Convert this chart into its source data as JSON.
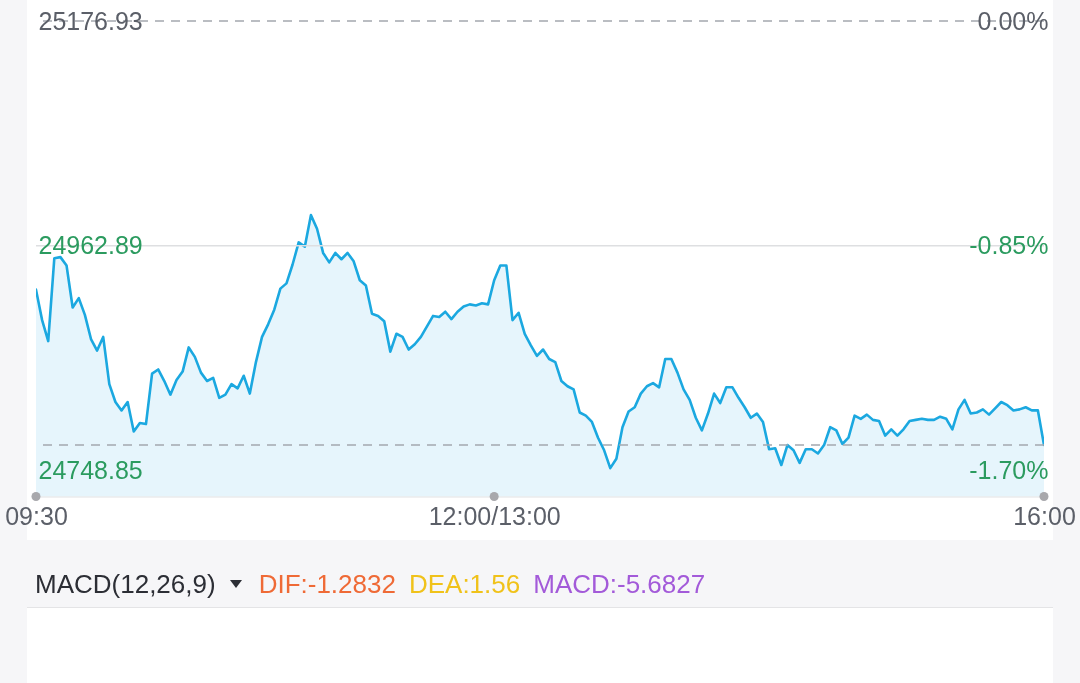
{
  "chart_data": [
    {
      "type": "area",
      "categories": [
        "09:30",
        null,
        null,
        null,
        null,
        null,
        null,
        null,
        null,
        null,
        null,
        null,
        null,
        null,
        null,
        null,
        null,
        null,
        null,
        null,
        null,
        null,
        null,
        null,
        null,
        null,
        null,
        null,
        null,
        null,
        null,
        null,
        null,
        null,
        null,
        null,
        null,
        null,
        null,
        null,
        null,
        null,
        null,
        null,
        null,
        null,
        null,
        null,
        null,
        null,
        null,
        null,
        null,
        null,
        null,
        null,
        null,
        null,
        null,
        null,
        null,
        null,
        null,
        null,
        null,
        null,
        null,
        null,
        null,
        null,
        null,
        null,
        null,
        null,
        null,
        "12:00/13:00",
        null,
        null,
        null,
        null,
        null,
        null,
        null,
        null,
        null,
        null,
        null,
        null,
        null,
        null,
        null,
        null,
        null,
        null,
        null,
        null,
        null,
        null,
        null,
        null,
        null,
        null,
        null,
        null,
        null,
        null,
        null,
        null,
        null,
        null,
        null,
        null,
        null,
        null,
        null,
        null,
        null,
        null,
        null,
        null,
        null,
        null,
        null,
        null,
        null,
        null,
        null,
        null,
        null,
        null,
        null,
        null,
        null,
        null,
        null,
        null,
        null,
        null,
        null,
        null,
        null,
        null,
        null,
        null,
        null,
        null,
        null,
        null,
        null,
        null,
        null,
        null,
        null,
        null,
        null,
        null,
        null,
        null,
        null,
        null,
        null,
        null,
        null,
        null,
        null,
        "16:00"
      ],
      "series": [
        {
          "color": "#1ba8e0",
          "values": [
            24921,
            24892,
            24872,
            24951,
            24952,
            24944,
            24904,
            24913,
            24897,
            24874,
            24863,
            24876,
            24831,
            24814,
            24806,
            24814,
            24786,
            24794,
            24793,
            24841,
            24845,
            24834,
            24821,
            24835,
            24843,
            24866,
            24857,
            24842,
            24834,
            24837,
            24818,
            24821,
            24831,
            24827,
            24839,
            24822,
            24852,
            24876,
            24888,
            24902,
            24922,
            24927,
            24945,
            24966,
            24962,
            24992,
            24979,
            24956,
            24947,
            24956,
            24950,
            24956,
            24948,
            24930,
            24925,
            24898,
            24896,
            24891,
            24862,
            24879,
            24876,
            24864,
            24869,
            24876,
            24886,
            24896,
            24895,
            24900,
            24893,
            24900,
            24905,
            24907,
            24906,
            24908,
            24907,
            24930,
            24944,
            24944,
            24892,
            24899,
            24879,
            24868,
            24858,
            24864,
            24855,
            24852,
            24834,
            24829,
            24826,
            24804,
            24801,
            24795,
            24780,
            24768,
            24751,
            24760,
            24790,
            24805,
            24809,
            24822,
            24829,
            24832,
            24828,
            24855,
            24855,
            24842,
            24826,
            24816,
            24799,
            24787,
            24803,
            24822,
            24813,
            24828,
            24828,
            24818,
            24809,
            24799,
            24803,
            24795,
            24769,
            24770,
            24754,
            24773,
            24768,
            24756,
            24769,
            24769,
            24765,
            24773,
            24790,
            24787,
            24774,
            24780,
            24801,
            24798,
            24802,
            24797,
            24796,
            24782,
            24788,
            24782,
            24788,
            24796,
            24797,
            24798,
            24797,
            24797,
            24800,
            24798,
            24788,
            24807,
            24816,
            24803,
            24804,
            24807,
            24802,
            24808,
            24814,
            24811,
            24806,
            24807,
            24809,
            24806,
            24806,
            24773
          ]
        }
      ],
      "ylim": [
        24724,
        25176.93
      ],
      "yticks": [
        24748.85,
        24962.89,
        25176.93
      ],
      "y2lim": [
        -1.8,
        0
      ],
      "y2ticks": [
        {
          "value": -1.7,
          "label": "-1.70%"
        },
        {
          "value": -0.85,
          "label": "-0.85%"
        },
        {
          "value": 0,
          "label": "0.00%"
        }
      ],
      "ref_lines": [
        {
          "axis": "y2",
          "value": 0,
          "line_style": "dashed",
          "color": "#a4a8ae"
        },
        {
          "axis": "y",
          "value": 24962.89,
          "line_style": "solid",
          "color": "#dedfe1"
        },
        {
          "axis": "y",
          "value": 24773,
          "line_style": "dashed",
          "color": "#a4a8ae"
        }
      ]
    },
    {
      "type": "other",
      "title": "MACD(12,26,9)",
      "annotations": [
        "DIF:-1.2832",
        "DEA:1.56",
        "MACD:-5.6827"
      ],
      "colors": [
        "#ef6a36",
        "#f0c21a",
        "#a35ad9"
      ]
    }
  ]
}
